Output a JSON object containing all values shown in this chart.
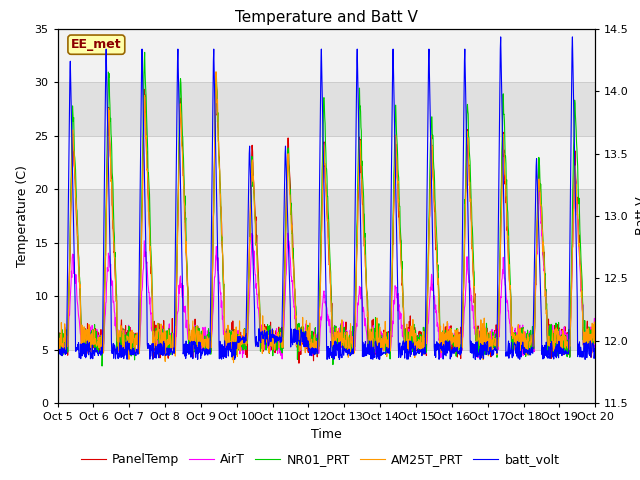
{
  "title": "Temperature and Batt V",
  "xlabel": "Time",
  "ylabel_left": "Temperature (C)",
  "ylabel_right": "Batt V",
  "annotation": "EE_met",
  "xlim": [
    0,
    15
  ],
  "ylim_left": [
    0,
    35
  ],
  "ylim_right": [
    11.5,
    14.5
  ],
  "xtick_labels": [
    "Oct 5",
    "Oct 6",
    "Oct 7",
    "Oct 8",
    "Oct 9",
    "Oct 10",
    "Oct 11",
    "Oct 12",
    "Oct 13",
    "Oct 14",
    "Oct 15",
    "Oct 16",
    "Oct 17",
    "Oct 18",
    "Oct 19",
    "Oct 20"
  ],
  "xtick_positions": [
    0,
    1,
    2,
    3,
    4,
    5,
    6,
    7,
    8,
    9,
    10,
    11,
    12,
    13,
    14,
    15
  ],
  "yticks_left": [
    0,
    5,
    10,
    15,
    20,
    25,
    30,
    35
  ],
  "yticks_right": [
    11.5,
    12.0,
    12.5,
    13.0,
    13.5,
    14.0,
    14.5
  ],
  "grid_color": "#cccccc",
  "bg_color": "#e0e0e0",
  "line_colors": {
    "PanelTemp": "#dd0000",
    "AirT": "#ff00ff",
    "NR01_PRT": "#00cc00",
    "AM25T_PRT": "#ff9900",
    "batt_volt": "#0000ff"
  },
  "legend_entries": [
    "PanelTemp",
    "AirT",
    "NR01_PRT",
    "AM25T_PRT",
    "batt_volt"
  ],
  "title_fontsize": 11,
  "label_fontsize": 9,
  "tick_fontsize": 8,
  "legend_fontsize": 9,
  "figsize": [
    6.4,
    4.8
  ],
  "dpi": 100
}
